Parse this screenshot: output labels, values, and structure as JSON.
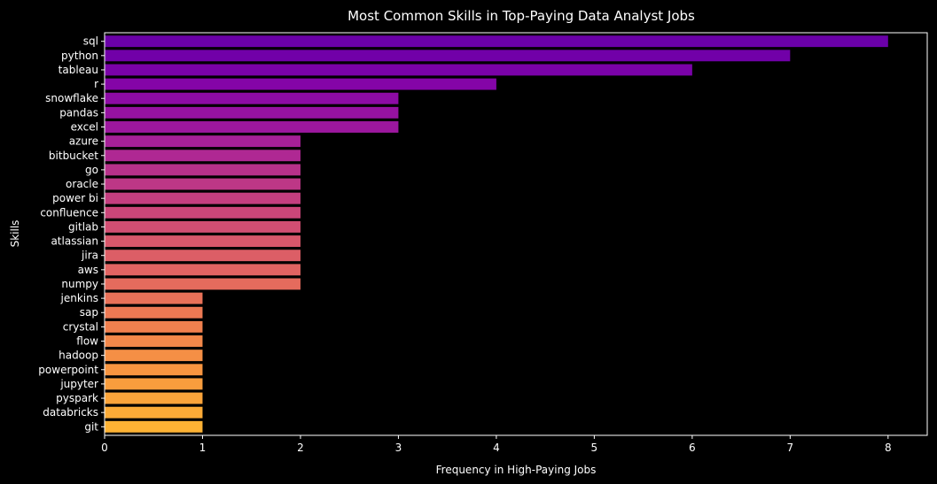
{
  "chart_data": {
    "type": "bar",
    "orientation": "horizontal",
    "title": "Most Common Skills in Top-Paying Data Analyst Jobs",
    "xlabel": "Frequency in High-Paying Jobs",
    "ylabel": "Skills",
    "xlim": [
      0,
      8.4
    ],
    "xticks": [
      0,
      1,
      2,
      3,
      4,
      5,
      6,
      7,
      8
    ],
    "grid": false,
    "legend": "none",
    "categories": [
      "sql",
      "python",
      "tableau",
      "r",
      "snowflake",
      "pandas",
      "excel",
      "azure",
      "bitbucket",
      "go",
      "oracle",
      "power bi",
      "confluence",
      "gitlab",
      "atlassian",
      "jira",
      "aws",
      "numpy",
      "jenkins",
      "sap",
      "crystal",
      "flow",
      "hadoop",
      "powerpoint",
      "jupyter",
      "pyspark",
      "databricks",
      "git"
    ],
    "values": [
      8,
      7,
      6,
      4,
      3,
      3,
      3,
      2,
      2,
      2,
      2,
      2,
      2,
      2,
      2,
      2,
      2,
      2,
      1,
      1,
      1,
      1,
      1,
      1,
      1,
      1,
      1,
      1
    ],
    "colormap": "plasma",
    "colors": [
      "#6a00a8",
      "#7100a8",
      "#7a02a8",
      "#8405a7",
      "#8d0ba5",
      "#9612a1",
      "#9c179e",
      "#a62098",
      "#af2893",
      "#b7318a",
      "#bd3786",
      "#c43e7f",
      "#cb4679",
      "#d14e72",
      "#d8576b",
      "#dc5e66",
      "#e16462",
      "#e56b5d",
      "#e97158",
      "#ed7953",
      "#f0804e",
      "#f3884a",
      "#f58f45",
      "#f89540",
      "#f99d3d",
      "#fba43a",
      "#fcab37",
      "#fdb234"
    ]
  },
  "style": {
    "background": "#000000",
    "text_color": "#ffffff",
    "axis_color": "#ffffff"
  }
}
